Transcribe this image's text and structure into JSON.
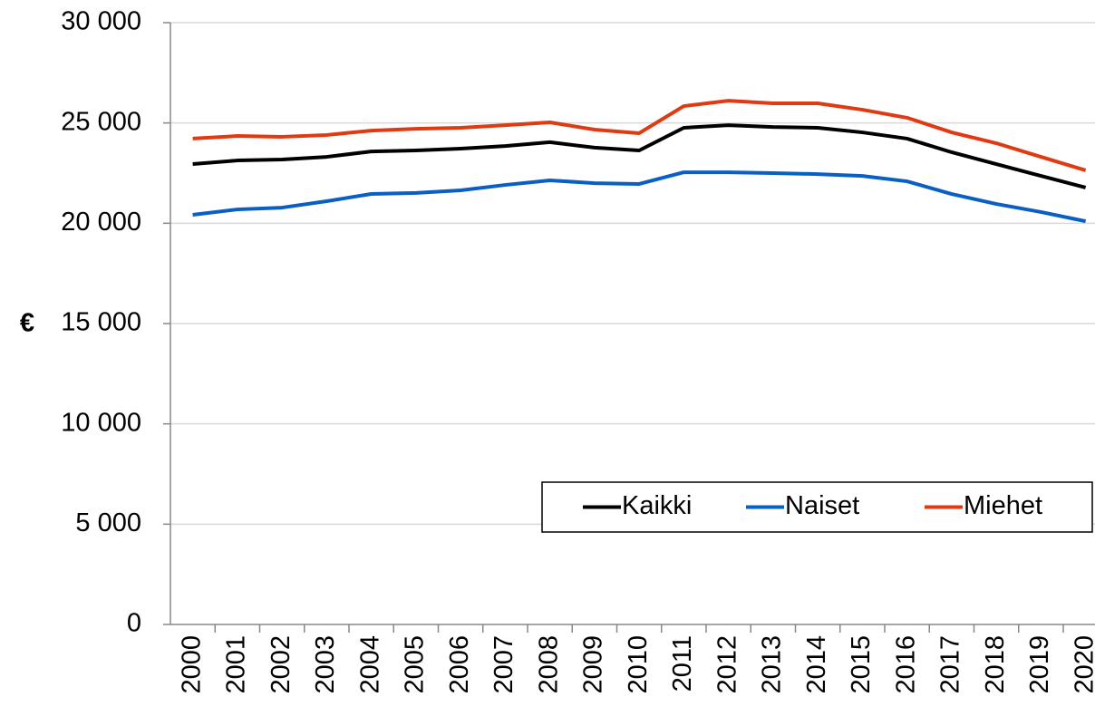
{
  "chart_data": {
    "type": "line",
    "y_label": "€",
    "categories": [
      "2000",
      "2001",
      "2002",
      "2003",
      "2004",
      "2005",
      "2006",
      "2007",
      "2008",
      "2009",
      "2010",
      "2011",
      "2012",
      "2013",
      "2014",
      "2015",
      "2016",
      "2017",
      "2018",
      "2019",
      "2020"
    ],
    "series": [
      {
        "name": "Kaikki",
        "color": "#000000",
        "values": [
          22950,
          23130,
          23180,
          23310,
          23580,
          23630,
          23720,
          23850,
          24040,
          23770,
          23630,
          24760,
          24890,
          24800,
          24760,
          24530,
          24220,
          23540,
          22950,
          22360,
          21780
        ]
      },
      {
        "name": "Naiset",
        "color": "#0a5fc4",
        "values": [
          20420,
          20690,
          20780,
          21100,
          21460,
          21510,
          21640,
          21910,
          22140,
          22000,
          21960,
          22540,
          22540,
          22500,
          22450,
          22360,
          22090,
          21460,
          20960,
          20560,
          20100
        ]
      },
      {
        "name": "Miehet",
        "color": "#e03a12",
        "values": [
          24220,
          24350,
          24310,
          24400,
          24620,
          24710,
          24760,
          24890,
          25030,
          24670,
          24490,
          25840,
          26110,
          25980,
          25980,
          25660,
          25260,
          24530,
          23990,
          23310,
          22640
        ]
      }
    ],
    "ylim": [
      0,
      30000
    ],
    "yticks": [
      {
        "value": 0,
        "label": "0"
      },
      {
        "value": 5000,
        "label": "5 000"
      },
      {
        "value": 10000,
        "label": "10 000"
      },
      {
        "value": 15000,
        "label": "15 000"
      },
      {
        "value": 20000,
        "label": "20 000"
      },
      {
        "value": 25000,
        "label": "25 000"
      },
      {
        "value": 30000,
        "label": "30 000"
      }
    ],
    "grid": true,
    "legend": "lower right"
  }
}
